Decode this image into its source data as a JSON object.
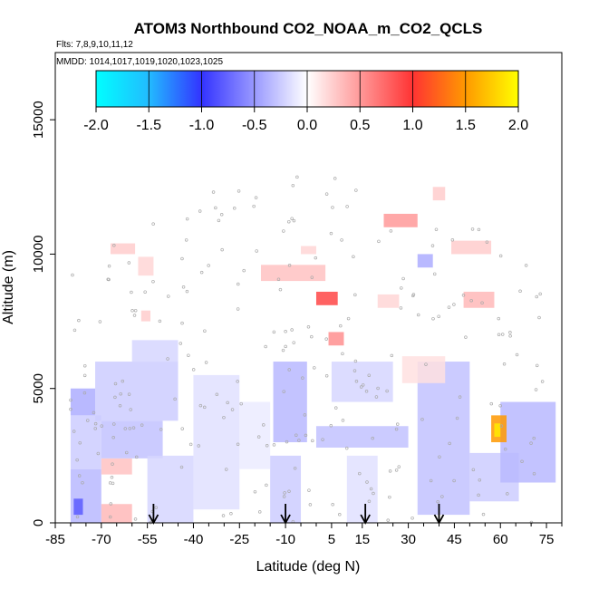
{
  "chart_data": {
    "type": "heatmap",
    "title": "ATOM3 Northbound CO2_NOAA_m_CO2_QCLS",
    "subtitle": "Flts: 7,8,9,10,11,12",
    "annotation": "MMDD: 1014,1017,1019,1020,1023,1025",
    "xlabel": "Latitude (deg N)",
    "ylabel": "Altitude (m)",
    "xlim": [
      -85,
      80
    ],
    "ylim": [
      0,
      17500
    ],
    "x_ticks": [
      -85,
      -70,
      -55,
      -40,
      -25,
      -10,
      5,
      15,
      30,
      45,
      60,
      75
    ],
    "y_ticks": [
      0,
      5000,
      10000,
      15000
    ],
    "colorbar": {
      "min": -2.0,
      "max": 2.0,
      "ticks": [
        "-2.0",
        "-1.5",
        "-1.0",
        "-0.5",
        "0.0",
        "0.5",
        "1.0",
        "1.5",
        "2.0"
      ],
      "colors": [
        "#00ffff",
        "#3399ff",
        "#3333ff",
        "#ffffff",
        "#ff3333",
        "#ffff00"
      ]
    },
    "cells": [
      {
        "lat": [
          -80,
          -70
        ],
        "alt": [
          0,
          2000
        ],
        "value": -0.35
      },
      {
        "lat": [
          -80,
          -70
        ],
        "alt": [
          2000,
          4000
        ],
        "value": -0.25
      },
      {
        "lat": [
          -80,
          -72
        ],
        "alt": [
          4000,
          5000
        ],
        "value": -0.4
      },
      {
        "lat": [
          -79,
          -76
        ],
        "alt": [
          300,
          900
        ],
        "value": -0.8
      },
      {
        "lat": [
          -70,
          -60
        ],
        "alt": [
          0,
          700
        ],
        "value": 0.35
      },
      {
        "lat": [
          -70,
          -60
        ],
        "alt": [
          1800,
          2400
        ],
        "value": 0.3
      },
      {
        "lat": [
          -70,
          -50
        ],
        "alt": [
          2400,
          3800
        ],
        "value": -0.3
      },
      {
        "lat": [
          -72,
          -45
        ],
        "alt": [
          3800,
          6000
        ],
        "value": -0.25
      },
      {
        "lat": [
          -60,
          -45
        ],
        "alt": [
          6000,
          6800
        ],
        "value": -0.2
      },
      {
        "lat": [
          -55,
          -40
        ],
        "alt": [
          0,
          2500
        ],
        "value": -0.2
      },
      {
        "lat": [
          -40,
          -25
        ],
        "alt": [
          500,
          5500
        ],
        "value": -0.15
      },
      {
        "lat": [
          -25,
          -15
        ],
        "alt": [
          2000,
          4500
        ],
        "value": -0.1
      },
      {
        "lat": [
          -67,
          -59
        ],
        "alt": [
          10000,
          10400
        ],
        "value": 0.25
      },
      {
        "lat": [
          -58,
          -53
        ],
        "alt": [
          9200,
          9900
        ],
        "value": 0.2
      },
      {
        "lat": [
          -57,
          -54
        ],
        "alt": [
          7500,
          7900
        ],
        "value": 0.25
      },
      {
        "lat": [
          -15,
          -5
        ],
        "alt": [
          0,
          2500
        ],
        "value": -0.25
      },
      {
        "lat": [
          -14,
          -3
        ],
        "alt": [
          3000,
          6000
        ],
        "value": -0.35
      },
      {
        "lat": [
          -18,
          3
        ],
        "alt": [
          9000,
          9600
        ],
        "value": 0.3
      },
      {
        "lat": [
          -5,
          0
        ],
        "alt": [
          10000,
          10300
        ],
        "value": 0.2
      },
      {
        "lat": [
          0,
          7
        ],
        "alt": [
          8100,
          8600
        ],
        "value": 0.9
      },
      {
        "lat": [
          4,
          9
        ],
        "alt": [
          6600,
          7100
        ],
        "value": 0.55
      },
      {
        "lat": [
          0,
          30
        ],
        "alt": [
          2800,
          3600
        ],
        "value": -0.3
      },
      {
        "lat": [
          5,
          25
        ],
        "alt": [
          4500,
          6000
        ],
        "value": -0.2
      },
      {
        "lat": [
          10,
          20
        ],
        "alt": [
          0,
          2500
        ],
        "value": -0.15
      },
      {
        "lat": [
          22,
          33
        ],
        "alt": [
          11000,
          11500
        ],
        "value": 0.5
      },
      {
        "lat": [
          20,
          27
        ],
        "alt": [
          8000,
          8500
        ],
        "value": 0.2
      },
      {
        "lat": [
          33,
          38
        ],
        "alt": [
          9500,
          10000
        ],
        "value": -0.4
      },
      {
        "lat": [
          33,
          50
        ],
        "alt": [
          300,
          6000
        ],
        "value": -0.3
      },
      {
        "lat": [
          50,
          66
        ],
        "alt": [
          800,
          2600
        ],
        "value": -0.25
      },
      {
        "lat": [
          60,
          78
        ],
        "alt": [
          1500,
          4500
        ],
        "value": -0.35
      },
      {
        "lat": [
          57,
          62
        ],
        "alt": [
          3000,
          4000
        ],
        "value": 1.5
      },
      {
        "lat": [
          58,
          60
        ],
        "alt": [
          3200,
          3700
        ],
        "value": 1.9
      },
      {
        "lat": [
          44,
          57
        ],
        "alt": [
          10000,
          10500
        ],
        "value": 0.25
      },
      {
        "lat": [
          48,
          58
        ],
        "alt": [
          8000,
          8600
        ],
        "value": 0.35
      },
      {
        "lat": [
          38,
          42
        ],
        "alt": [
          12000,
          12500
        ],
        "value": 0.25
      },
      {
        "lat": [
          28,
          42
        ],
        "alt": [
          5200,
          6200
        ],
        "value": 0.15
      }
    ],
    "arrows_lat": [
      -53,
      -10,
      16,
      40
    ]
  }
}
